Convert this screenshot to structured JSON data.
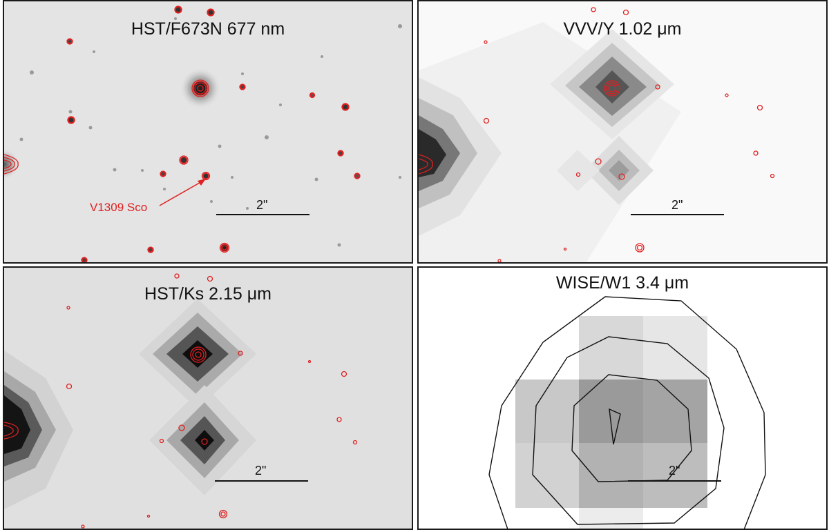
{
  "figure": {
    "panels": [
      {
        "id": "hst-f673n",
        "title": "HST/F673N 677 nm",
        "scale_label": "2\"",
        "annotation": "V1309 Sco"
      },
      {
        "id": "vvv-y",
        "title": "VVV/Y 1.02 μm",
        "scale_label": "2\""
      },
      {
        "id": "hst-ks",
        "title": "HST/Ks 2.15 μm",
        "scale_label": "2\""
      },
      {
        "id": "wise-w1",
        "title": "WISE/W1 3.4 μm",
        "scale_label": "2\""
      }
    ],
    "colors": {
      "contour_red": "#e02020",
      "contour_black": "#111111",
      "frame": "#1a1a1a"
    }
  }
}
